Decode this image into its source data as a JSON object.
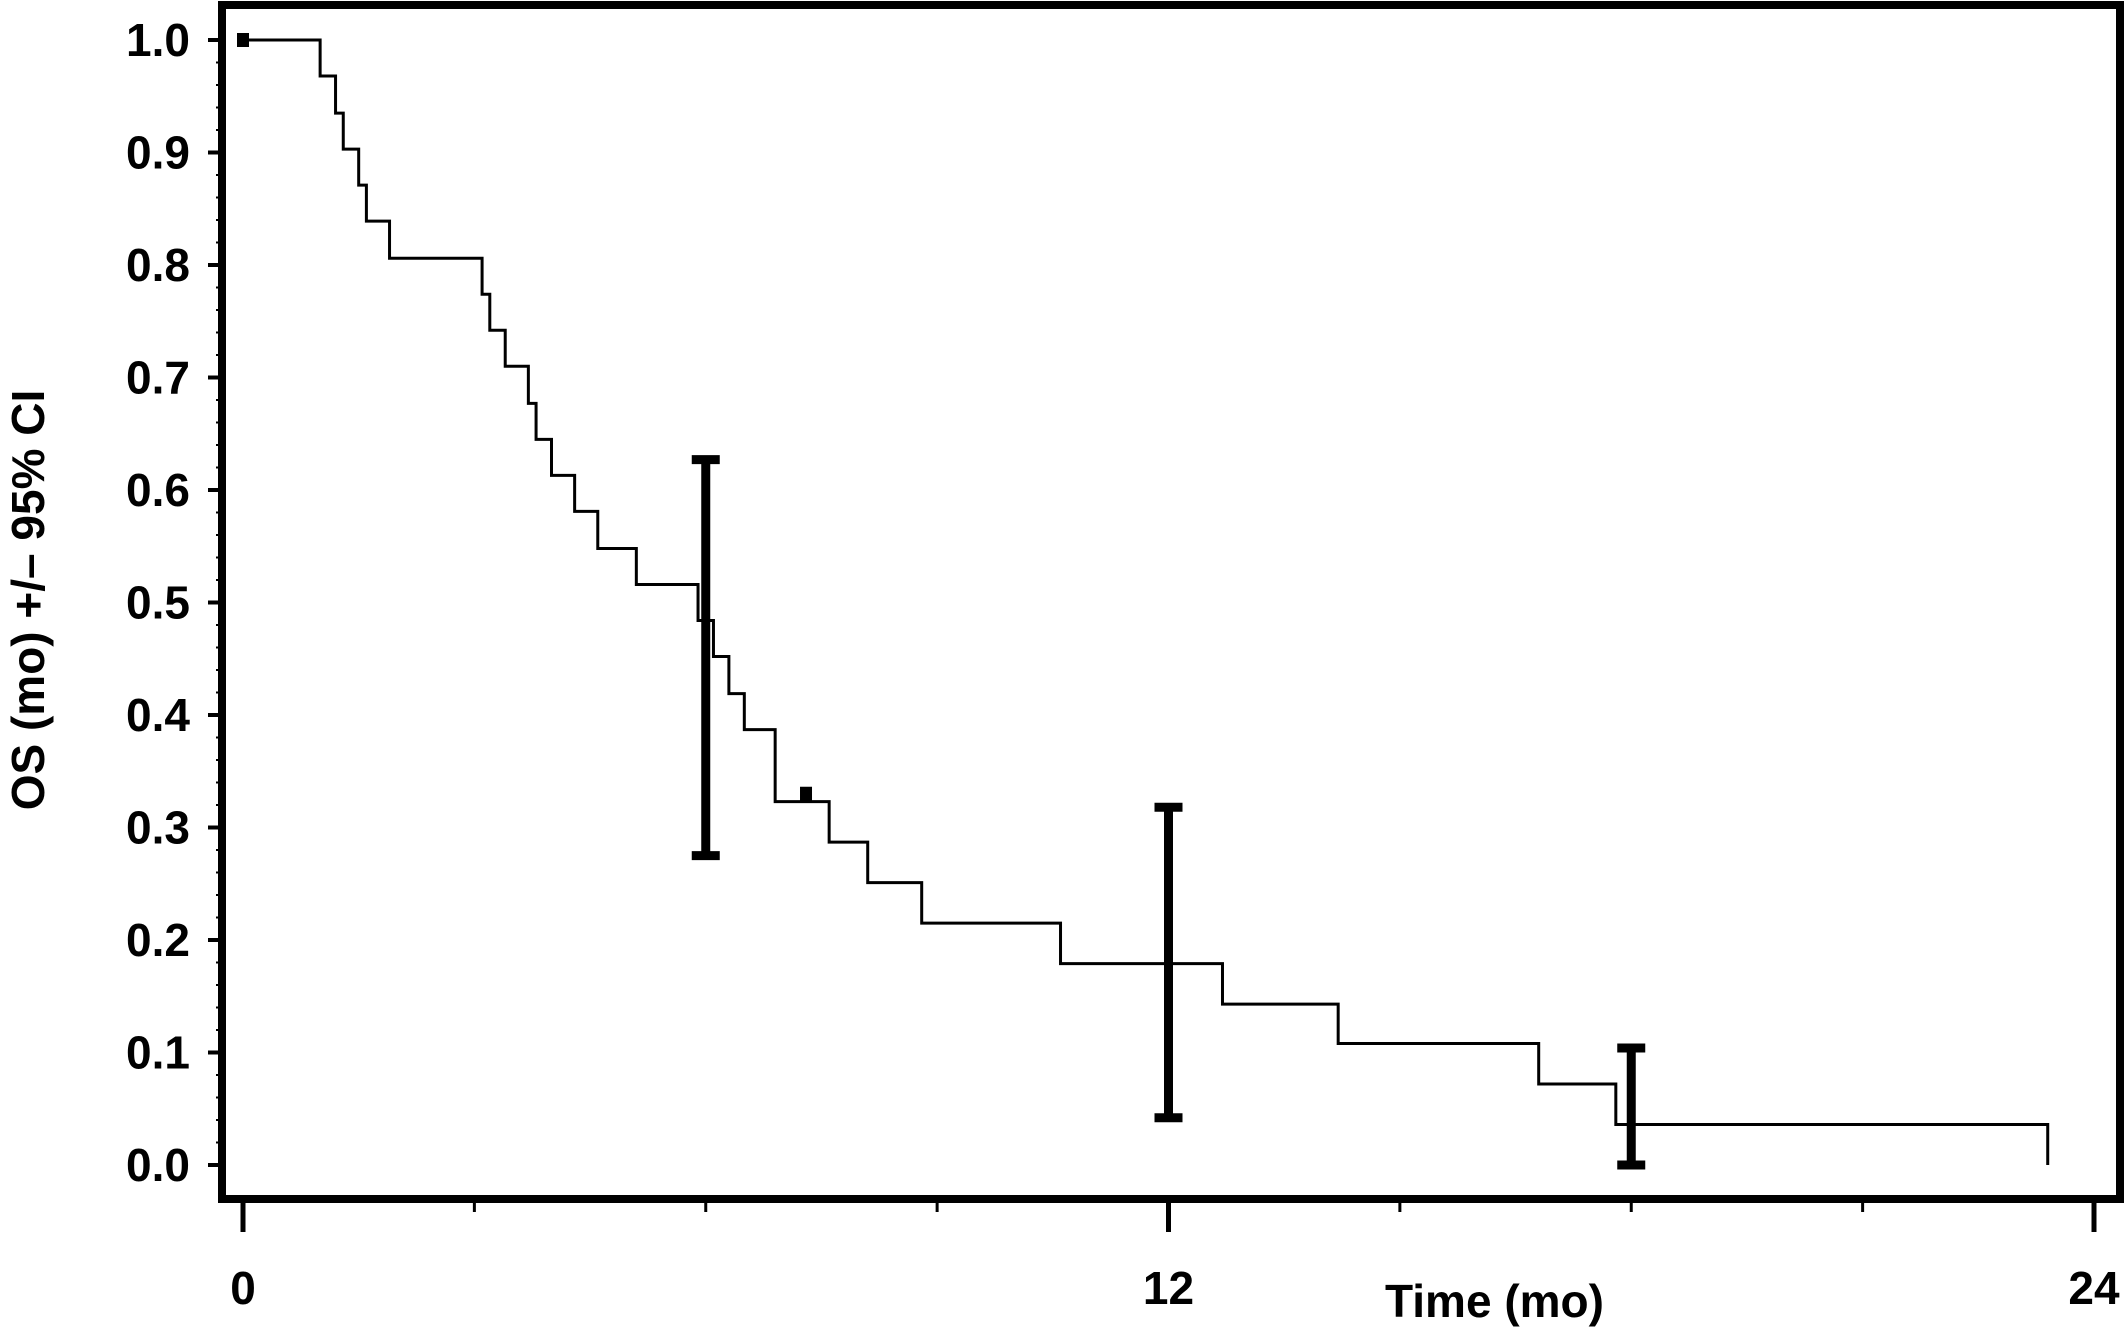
{
  "chart_data": {
    "type": "line",
    "title": "",
    "xlabel": "Time (mo)",
    "ylabel": "OS (mo) +/– 95% CI",
    "xlim": [
      0,
      24
    ],
    "ylim": [
      0,
      1
    ],
    "x_ticks": [
      0,
      12,
      24
    ],
    "x_tick_labels": [
      "0",
      "12",
      "24"
    ],
    "y_ticks": [
      0.0,
      0.1,
      0.2,
      0.3,
      0.4,
      0.5,
      0.6,
      0.7,
      0.8,
      0.9,
      1.0
    ],
    "y_tick_labels": [
      "0.0",
      "0.1",
      "0.2",
      "0.3",
      "0.4",
      "0.5",
      "0.6",
      "0.7",
      "0.8",
      "0.9",
      "1.0"
    ],
    "grid": false,
    "legend": "none",
    "series": [
      {
        "step": true,
        "color": "#000000",
        "points": [
          [
            0,
            1.0
          ],
          [
            1.0,
            0.968
          ],
          [
            1.2,
            0.935
          ],
          [
            1.3,
            0.903
          ],
          [
            1.5,
            0.871
          ],
          [
            1.6,
            0.839
          ],
          [
            1.9,
            0.806
          ],
          [
            3.1,
            0.774
          ],
          [
            3.2,
            0.742
          ],
          [
            3.4,
            0.71
          ],
          [
            3.7,
            0.677
          ],
          [
            3.8,
            0.645
          ],
          [
            4.0,
            0.613
          ],
          [
            4.3,
            0.581
          ],
          [
            4.6,
            0.548
          ],
          [
            5.1,
            0.516
          ],
          [
            5.9,
            0.484
          ],
          [
            6.1,
            0.452
          ],
          [
            6.3,
            0.419
          ],
          [
            6.5,
            0.387
          ],
          [
            6.9,
            0.323
          ],
          [
            7.6,
            0.287
          ],
          [
            8.1,
            0.251
          ],
          [
            8.8,
            0.215
          ],
          [
            10.6,
            0.179
          ],
          [
            12.7,
            0.143
          ],
          [
            14.2,
            0.108
          ],
          [
            16.8,
            0.072
          ],
          [
            17.8,
            0.036
          ],
          [
            23.4,
            0.036
          ],
          [
            23.4,
            0.0
          ]
        ]
      }
    ],
    "censor_marks": [
      [
        0,
        1.0
      ],
      [
        7.3,
        0.33
      ]
    ],
    "error_bars": [
      {
        "x": 6,
        "lower": 0.275,
        "upper": 0.627
      },
      {
        "x": 12,
        "lower": 0.042,
        "upper": 0.318
      },
      {
        "x": 18,
        "lower": 0.0,
        "upper": 0.104
      }
    ]
  }
}
